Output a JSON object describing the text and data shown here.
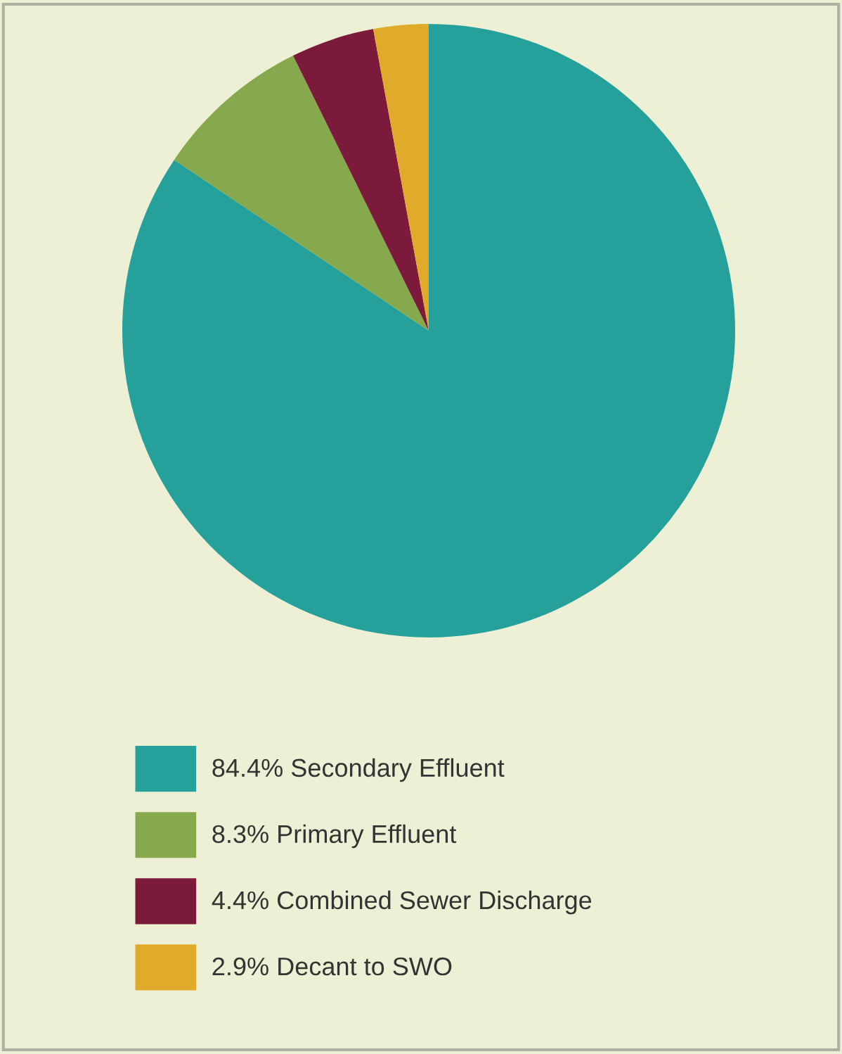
{
  "chart_data": {
    "type": "pie",
    "categories": [
      "Secondary Effluent",
      "Primary Effluent",
      "Combined Sewer Discharge",
      "Decant to SWO"
    ],
    "values": [
      84.4,
      8.3,
      4.4,
      2.9
    ],
    "value_labels": [
      "84.4%",
      "8.3%",
      "4.4%",
      "2.9%"
    ],
    "colors": [
      "#26a09a",
      "#87a94e",
      "#7b1a3a",
      "#e0ab2a"
    ],
    "legend": "bottom"
  }
}
